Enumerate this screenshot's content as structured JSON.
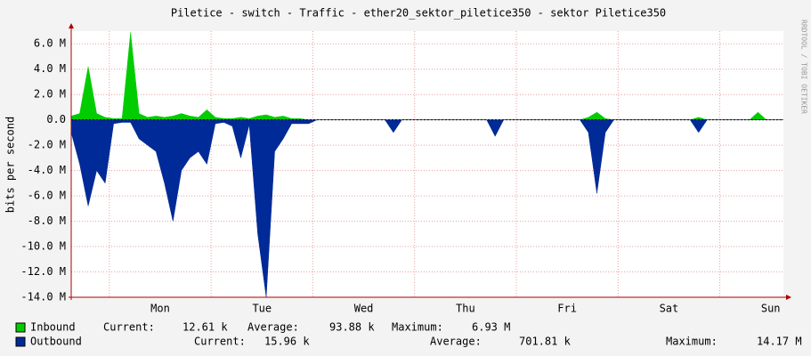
{
  "chart_data": {
    "type": "area",
    "title": "Piletice - switch - Traffic - ether20_sektor_piletice350 - sektor Piletice350",
    "ylabel": "bits per second",
    "watermark": "RRDTOOL / TOBI OETIKER",
    "x": [
      0,
      2,
      4,
      6,
      8,
      10,
      12,
      14,
      16,
      18,
      20,
      22,
      24,
      26,
      28,
      30,
      32,
      34,
      36,
      38,
      40,
      42,
      44,
      46,
      48,
      50,
      52,
      54,
      56,
      58,
      60,
      62,
      64,
      66,
      68,
      70,
      72,
      74,
      76,
      78,
      80,
      82,
      84,
      86,
      88,
      90,
      92,
      94,
      96,
      98,
      100,
      102,
      104,
      106,
      108,
      110,
      112,
      114,
      116,
      118,
      120,
      122,
      124,
      126,
      128,
      130,
      132,
      134,
      136,
      138,
      140,
      142,
      144,
      146,
      148,
      150,
      152,
      154,
      156,
      158,
      160,
      162,
      164,
      166,
      168
    ],
    "xlim": [
      0,
      168
    ],
    "xticks": [
      {
        "value": 21,
        "label": "Mon"
      },
      {
        "value": 45,
        "label": "Tue"
      },
      {
        "value": 69,
        "label": "Wed"
      },
      {
        "value": 93,
        "label": "Thu"
      },
      {
        "value": 117,
        "label": "Fri"
      },
      {
        "value": 141,
        "label": "Sat"
      },
      {
        "value": 165,
        "label": "Sun"
      }
    ],
    "ylim": [
      -14000000,
      7000000
    ],
    "yticks": [
      {
        "value": 6000000,
        "label": "6.0 M"
      },
      {
        "value": 4000000,
        "label": "4.0 M"
      },
      {
        "value": 2000000,
        "label": "2.0 M"
      },
      {
        "value": 0,
        "label": "0.0"
      },
      {
        "value": -2000000,
        "label": "-2.0 M"
      },
      {
        "value": -4000000,
        "label": "-4.0 M"
      },
      {
        "value": -6000000,
        "label": "-6.0 M"
      },
      {
        "value": -8000000,
        "label": "-8.0 M"
      },
      {
        "value": -10000000,
        "label": "-10.0 M"
      },
      {
        "value": -12000000,
        "label": "-12.0 M"
      },
      {
        "value": -14000000,
        "label": "-14.0 M"
      }
    ],
    "grid": true,
    "stat_labels": [
      "Current:",
      "Average:",
      "Maximum:"
    ],
    "series": [
      {
        "name": "Inbound",
        "color": "#00cc00",
        "values": [
          300000,
          500000,
          4200000,
          500000,
          200000,
          100000,
          100000,
          6900000,
          500000,
          200000,
          300000,
          200000,
          300000,
          500000,
          300000,
          200000,
          800000,
          200000,
          100000,
          100000,
          200000,
          100000,
          300000,
          400000,
          200000,
          300000,
          100000,
          100000,
          0,
          0,
          0,
          0,
          0,
          0,
          0,
          0,
          0,
          0,
          0,
          0,
          0,
          0,
          0,
          0,
          0,
          0,
          0,
          0,
          0,
          0,
          0,
          0,
          0,
          0,
          0,
          0,
          0,
          0,
          0,
          0,
          0,
          200000,
          600000,
          100000,
          0,
          0,
          0,
          0,
          0,
          0,
          0,
          0,
          0,
          0,
          200000,
          0,
          0,
          0,
          0,
          0,
          0,
          600000,
          0,
          0,
          0
        ],
        "stats": [
          {
            "value": 12610,
            "label": "12.61 k"
          },
          {
            "value": 93880,
            "label": "93.88 k"
          },
          {
            "value": 6930000,
            "label": "6.93 M"
          }
        ]
      },
      {
        "name": "Outbound",
        "color": "#002a97",
        "values": [
          -1000000,
          -3500000,
          -6800000,
          -4000000,
          -5000000,
          -300000,
          -200000,
          -200000,
          -1500000,
          -2000000,
          -2500000,
          -5000000,
          -8000000,
          -4000000,
          -3000000,
          -2500000,
          -3500000,
          -300000,
          -200000,
          -500000,
          -3000000,
          -400000,
          -9000000,
          -14000000,
          -2500000,
          -1500000,
          -300000,
          -300000,
          -300000,
          0,
          0,
          0,
          0,
          0,
          0,
          0,
          0,
          0,
          -1000000,
          0,
          0,
          0,
          0,
          0,
          0,
          0,
          0,
          0,
          0,
          0,
          -1300000,
          0,
          0,
          0,
          0,
          0,
          0,
          0,
          0,
          0,
          0,
          -1000000,
          -5800000,
          -1000000,
          0,
          0,
          0,
          0,
          0,
          0,
          0,
          0,
          0,
          0,
          -1000000,
          0,
          0,
          0,
          0,
          0,
          0,
          0,
          0,
          0,
          0
        ],
        "stats": [
          {
            "value": 15960,
            "label": "15.96 k"
          },
          {
            "value": 701810,
            "label": "701.81 k"
          },
          {
            "value": 14170000,
            "label": "14.17 M"
          }
        ]
      }
    ]
  }
}
